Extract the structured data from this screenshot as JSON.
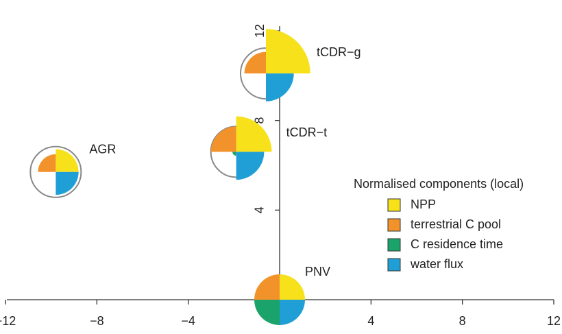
{
  "chart_data": {
    "type": "glyph",
    "xlim": [
      -12,
      12
    ],
    "ylim": [
      0,
      12
    ],
    "xticks": [
      {
        "value": -12,
        "label": "−12"
      },
      {
        "value": -8,
        "label": "−8"
      },
      {
        "value": -4,
        "label": "−4"
      },
      0,
      4,
      8,
      12
    ],
    "yticks": [
      4,
      8,
      12
    ],
    "points": [
      {
        "label": "PNV",
        "x": 0,
        "y": 0
      },
      {
        "label": "AGR",
        "x": -9.8,
        "y": 5.7
      },
      {
        "label": "tCDR−t",
        "x": -1.9,
        "y": 6.6
      },
      {
        "label": "tCDR−g",
        "x": -0.6,
        "y": 10.1
      }
    ],
    "legend_title": "Normalised components (local)",
    "series": [
      {
        "name": "NPP",
        "color": "#f7e11a",
        "values": [
          1,
          0.9,
          1.4,
          1.75
        ]
      },
      {
        "name": "terrestrial C pool",
        "color": "#f2922a",
        "values": [
          1,
          0.7,
          1.0,
          0.85
        ]
      },
      {
        "name": "C residence time",
        "color": "#1aa36a",
        "values": [
          1,
          0,
          0.15,
          0
        ]
      },
      {
        "name": "water flux",
        "color": "#1f9fd6",
        "values": [
          1,
          0.9,
          1.1,
          1.1
        ]
      }
    ]
  }
}
